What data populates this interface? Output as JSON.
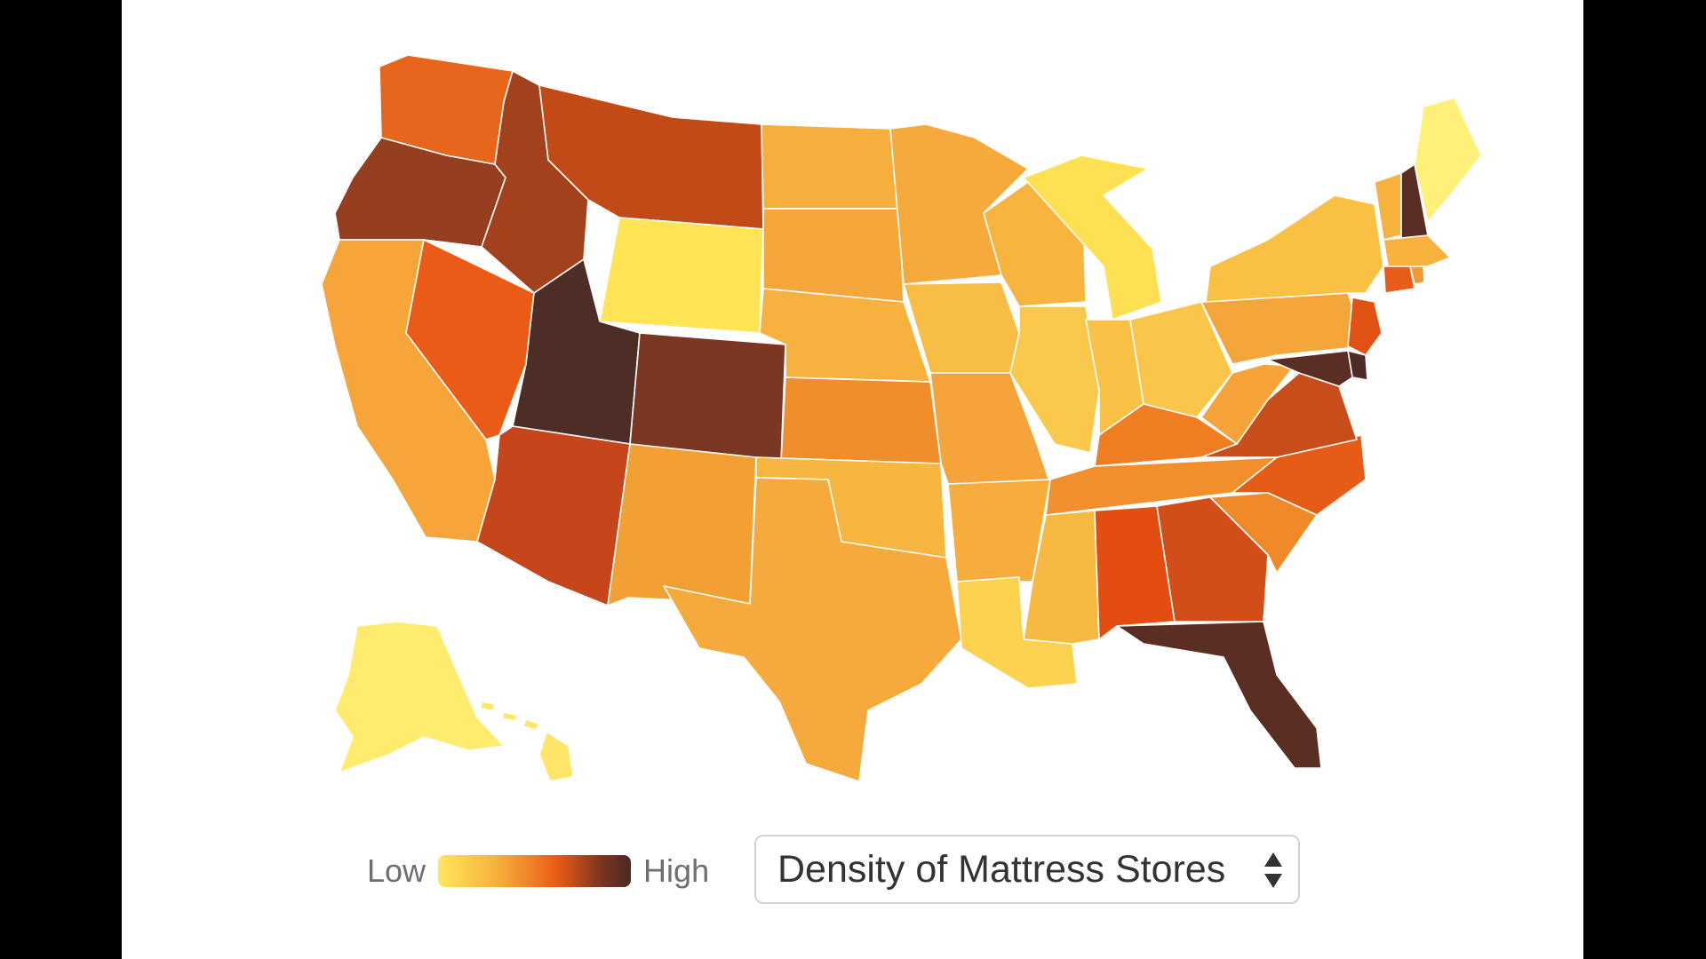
{
  "legend": {
    "low_label": "Low",
    "high_label": "High",
    "scale_colors": [
      "#ffe65a",
      "#f7b23c",
      "#ea5a16",
      "#7a3522",
      "#4a2a24"
    ]
  },
  "metric_select": {
    "selected": "Density of Mattress Stores"
  },
  "states": [
    {
      "code": "WA",
      "color": "#e8661b"
    },
    {
      "code": "OR",
      "color": "#953f20"
    },
    {
      "code": "CA",
      "color": "#f5a53a"
    },
    {
      "code": "ID",
      "color": "#a3411d"
    },
    {
      "code": "NV",
      "color": "#ea5b16"
    },
    {
      "code": "MT",
      "color": "#c24a17"
    },
    {
      "code": "WY",
      "color": "#ffe456"
    },
    {
      "code": "UT",
      "color": "#4e2d27"
    },
    {
      "code": "CO",
      "color": "#7c3723"
    },
    {
      "code": "AZ",
      "color": "#c5461b"
    },
    {
      "code": "NM",
      "color": "#f29f33"
    },
    {
      "code": "ND",
      "color": "#f6ae3c"
    },
    {
      "code": "SD",
      "color": "#f5a73b"
    },
    {
      "code": "NE",
      "color": "#f6b13e"
    },
    {
      "code": "KS",
      "color": "#f08e2c"
    },
    {
      "code": "OK",
      "color": "#f7b63f"
    },
    {
      "code": "TX",
      "color": "#f6aa3b"
    },
    {
      "code": "MN",
      "color": "#f6aa3b"
    },
    {
      "code": "IA",
      "color": "#f8bd44"
    },
    {
      "code": "MO",
      "color": "#f4a43a"
    },
    {
      "code": "AR",
      "color": "#f6ad3c"
    },
    {
      "code": "LA",
      "color": "#fdd24e"
    },
    {
      "code": "WI",
      "color": "#f7b43f"
    },
    {
      "code": "IL",
      "color": "#fac84b"
    },
    {
      "code": "MI",
      "color": "#fde153"
    },
    {
      "code": "IN",
      "color": "#f9c247"
    },
    {
      "code": "OH",
      "color": "#fac649"
    },
    {
      "code": "KY",
      "color": "#ef7d22"
    },
    {
      "code": "TN",
      "color": "#f08f2b"
    },
    {
      "code": "MS",
      "color": "#f8b943"
    },
    {
      "code": "AL",
      "color": "#e34d12"
    },
    {
      "code": "GA",
      "color": "#d24d18"
    },
    {
      "code": "FL",
      "color": "#5b2e24"
    },
    {
      "code": "SC",
      "color": "#f08a29"
    },
    {
      "code": "NC",
      "color": "#e65c17"
    },
    {
      "code": "VA",
      "color": "#c84f1c"
    },
    {
      "code": "WV",
      "color": "#f5a43a"
    },
    {
      "code": "PA",
      "color": "#f5a63b"
    },
    {
      "code": "NY",
      "color": "#f9c043"
    },
    {
      "code": "VT",
      "color": "#f7b23e"
    },
    {
      "code": "NH",
      "color": "#5a2e25"
    },
    {
      "code": "ME",
      "color": "#fff07a"
    },
    {
      "code": "MA",
      "color": "#f7b33e"
    },
    {
      "code": "CT",
      "color": "#e85e18"
    },
    {
      "code": "RI",
      "color": "#f29a30"
    },
    {
      "code": "NJ",
      "color": "#e35215"
    },
    {
      "code": "DE",
      "color": "#4c2c25"
    },
    {
      "code": "MD",
      "color": "#5a2e24"
    },
    {
      "code": "AK",
      "color": "#ffec6e"
    },
    {
      "code": "HI",
      "color": "#ffe66a"
    }
  ]
}
